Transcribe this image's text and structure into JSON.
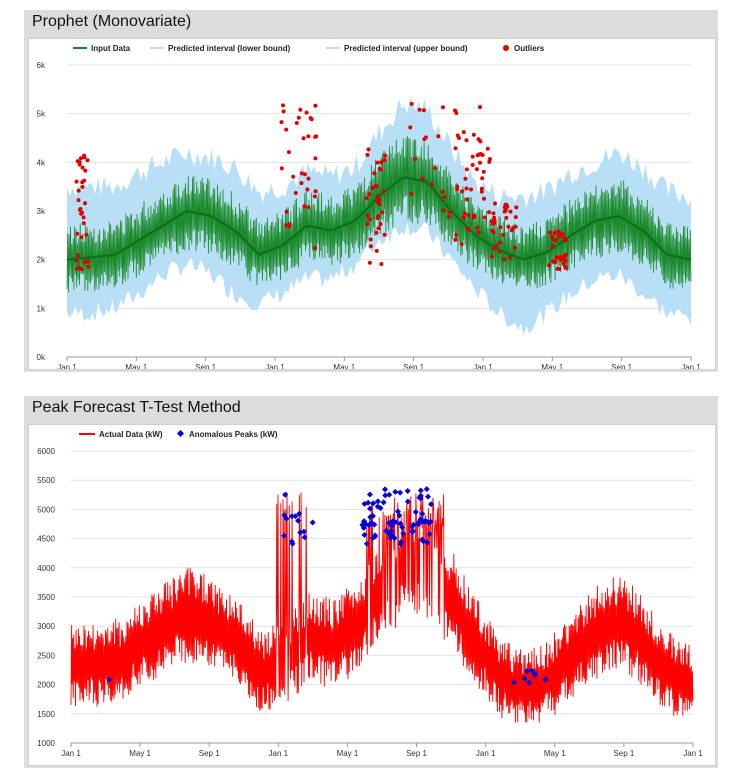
{
  "panels": [
    {
      "title": "Prophet (Monovariate)"
    },
    {
      "title": "Peak Forecast T-Test Method"
    }
  ],
  "chart_data": [
    {
      "type": "line",
      "x_tick_labels": [
        "Jan 1",
        "May 1",
        "Sep 1",
        "Jan 1",
        "May 1",
        "Sep 1",
        "Jan 1",
        "May 1",
        "Sep 1",
        "Jan 1"
      ],
      "y_tick_labels": [
        "0k",
        "1k",
        "2k",
        "3k",
        "4k",
        "5k",
        "6k"
      ],
      "ylim": [
        0,
        6000
      ],
      "grid": true,
      "legend_position": "top-left",
      "colors": {
        "input": "#1a8a2a",
        "band": "#b8dff5",
        "outlier": "#e00000"
      },
      "series": [
        {
          "name": "Input Data",
          "values": [
            2000,
            2050,
            2100,
            2400,
            2700,
            3000,
            2900,
            2600,
            2100,
            2300,
            2700,
            2600,
            2800,
            3300,
            3700,
            3600,
            3000,
            2500,
            2200,
            2000,
            2150,
            2500,
            2800,
            2900,
            2600,
            2100,
            2000
          ]
        },
        {
          "name": "Predicted interval (lower bound)",
          "values": [
            900,
            900,
            1000,
            1300,
            1700,
            1900,
            1700,
            1300,
            1100,
            1300,
            1600,
            1600,
            1900,
            2400,
            2700,
            2600,
            2000,
            1400,
            900,
            600,
            900,
            1300,
            1600,
            1700,
            1300,
            900,
            800
          ]
        },
        {
          "name": "Predicted interval (upper bound)",
          "values": [
            3500,
            3500,
            3500,
            3800,
            4000,
            4200,
            4100,
            3900,
            3400,
            3500,
            3800,
            3700,
            3900,
            4600,
            5200,
            5100,
            4300,
            3600,
            3300,
            3300,
            3400,
            3800,
            4000,
            4200,
            3900,
            3400,
            3300
          ]
        },
        {
          "name": "Outliers",
          "values": []
        }
      ]
    },
    {
      "type": "line",
      "x_tick_labels": [
        "Jan 1",
        "May 1",
        "Sep 1",
        "Jan 1",
        "May 1",
        "Sep 1",
        "Jan 1",
        "May 1",
        "Sep 1",
        "Jan 1"
      ],
      "y_tick_labels": [
        "1000",
        "1500",
        "2000",
        "2500",
        "3000",
        "3500",
        "4000",
        "4500",
        "5000",
        "5500",
        "6000"
      ],
      "ylim": [
        1000,
        6000
      ],
      "grid": true,
      "legend_position": "top-left",
      "colors": {
        "actual": "#ff0000",
        "peaks": "#0000dd"
      },
      "series": [
        {
          "name": "Actual Data (kW)",
          "values": [
            2300,
            2350,
            2400,
            2700,
            3000,
            3200,
            3000,
            2700,
            2200,
            2400,
            2800,
            2700,
            3000,
            3600,
            4100,
            4000,
            3400,
            2700,
            2100,
            1900,
            2100,
            2500,
            2900,
            3100,
            2700,
            2200,
            2000
          ]
        },
        {
          "name": "Anomalous Peaks (kW)",
          "values": []
        }
      ]
    }
  ]
}
